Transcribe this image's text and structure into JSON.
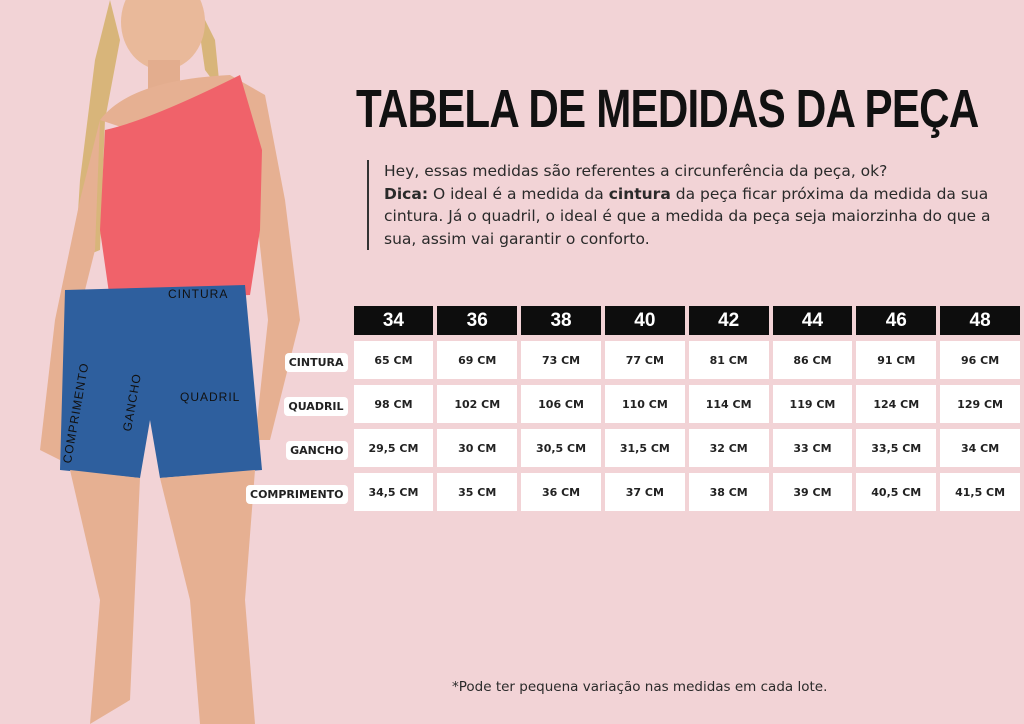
{
  "title": "TABELA DE MEDIDAS DA PEÇA",
  "intro": {
    "line1": "Hey, essas medidas são referentes a circunferência da peça, ok?",
    "dica_label": "Dica:",
    "text_a": " O ideal é a medida da ",
    "bold_word": "cintura",
    "text_b": " da peça ficar próxima da medida da sua cintura. Já o quadril, o ideal é que a medida da peça seja maiorzinha do que a sua, assim vai garantir o conforto."
  },
  "photo_labels": {
    "cintura": "CINTURA",
    "quadril": "QUADRIL",
    "gancho": "GANCHO",
    "comprimento": "COMPRIMENTO"
  },
  "table": {
    "sizes": [
      "34",
      "36",
      "38",
      "40",
      "42",
      "44",
      "46",
      "48"
    ],
    "rows": [
      {
        "label": "CINTURA",
        "values": [
          "65 CM",
          "69 CM",
          "73 CM",
          "77 CM",
          "81 CM",
          "86 CM",
          "91 CM",
          "96 CM"
        ]
      },
      {
        "label": "QUADRIL",
        "values": [
          "98 CM",
          "102 CM",
          "106 CM",
          "110 CM",
          "114 CM",
          "119 CM",
          "124 CM",
          "129 CM"
        ]
      },
      {
        "label": "GANCHO",
        "values": [
          "29,5 CM",
          "30 CM",
          "30,5 CM",
          "31,5 CM",
          "32 CM",
          "33 CM",
          "33,5 CM",
          "34 CM"
        ]
      },
      {
        "label": "COMPRIMENTO",
        "values": [
          "34,5 CM",
          "35 CM",
          "36 CM",
          "37 CM",
          "38 CM",
          "39 CM",
          "40,5 CM",
          "41,5 CM"
        ]
      }
    ]
  },
  "note": "*Pode ter pequena variação nas medidas em cada lote.",
  "colors": {
    "background": "#f2d3d6",
    "header": "#0d0d0d",
    "top": "#f0626a",
    "denim": "#2e5f9e"
  }
}
